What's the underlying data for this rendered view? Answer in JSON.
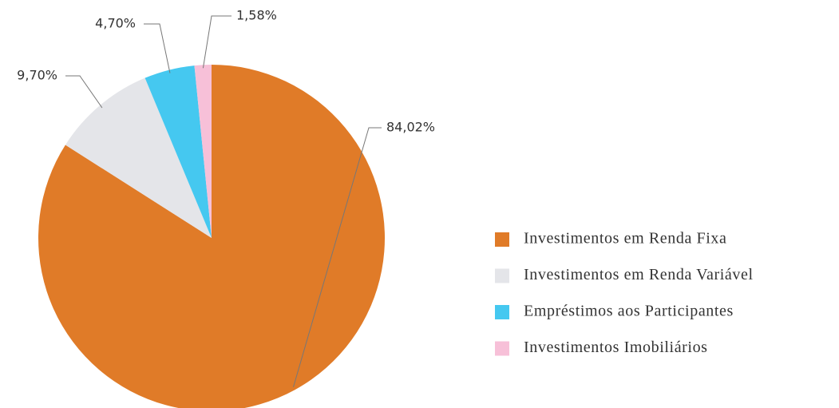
{
  "chart_data": {
    "type": "pie",
    "categories": [
      "Investimentos em Renda Fixa",
      "Investimentos em Renda Variável",
      "Empréstimos aos Participantes",
      "Investimentos Imobiliários"
    ],
    "values": [
      84.02,
      9.7,
      4.7,
      1.58
    ],
    "value_labels": [
      "84,02%",
      "9,70%",
      "4,70%",
      "1,58%"
    ],
    "colors": [
      "#e07b28",
      "#e4e5e9",
      "#45c8f0",
      "#f7c0d8"
    ]
  }
}
